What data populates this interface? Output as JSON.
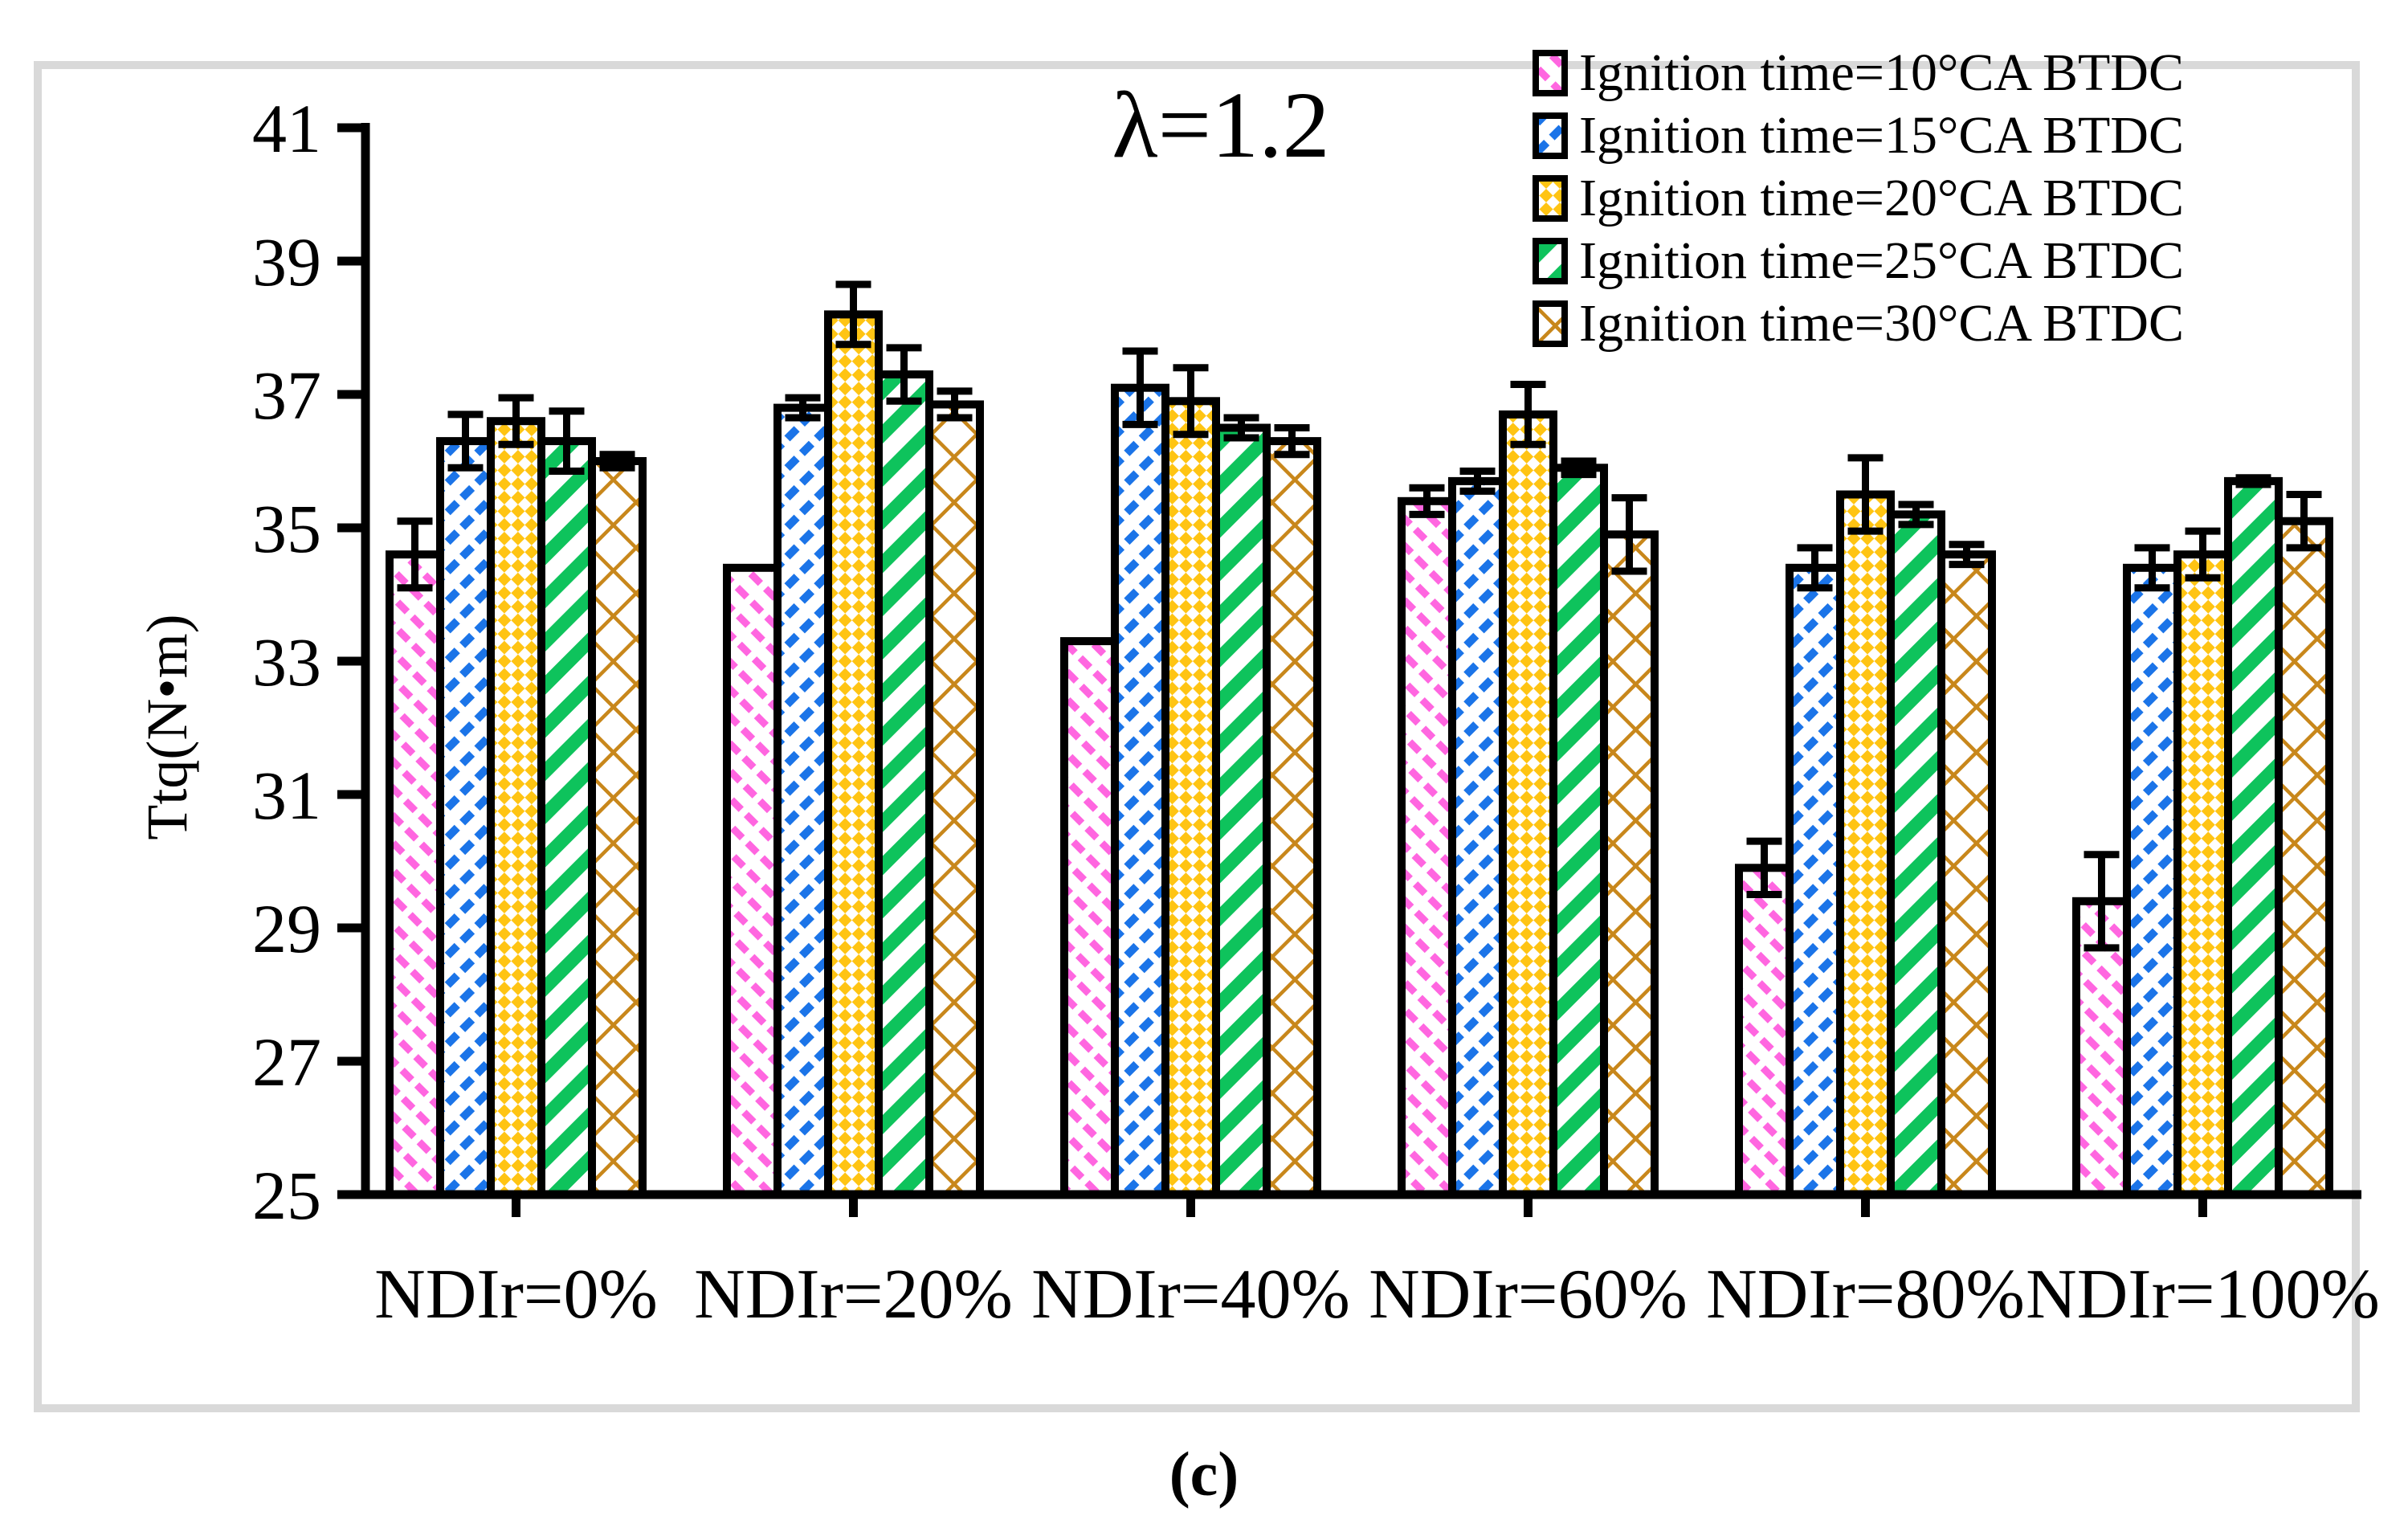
{
  "figure": {
    "title": "λ=1.2",
    "y_axis_label": "Ttq(N•m)",
    "caption": "(c)"
  },
  "chart_data": {
    "type": "bar",
    "title": "λ=1.2",
    "xlabel": "",
    "ylabel": "Ttq(N•m)",
    "ylim": [
      25,
      41
    ],
    "yticks": [
      25,
      27,
      29,
      31,
      33,
      35,
      37,
      39,
      41
    ],
    "grid": false,
    "legend_position": "top-right",
    "categories": [
      "NDIr=0%",
      "NDIr=20%",
      "NDIr=40%",
      "NDIr=60%",
      "NDIr=80%",
      "NDIr=100%"
    ],
    "series": [
      {
        "name": "Ignition time=10°CA BTDC",
        "color": "#FF66E0",
        "pattern": "diag-dash-down",
        "values": [
          34.6,
          34.4,
          33.3,
          35.4,
          29.9,
          29.4
        ],
        "errors": [
          0.5,
          0,
          0,
          0.2,
          0.4,
          0.7
        ]
      },
      {
        "name": "Ignition time=15°CA BTDC",
        "color": "#1B74E8",
        "pattern": "diag-dash-up",
        "values": [
          36.3,
          36.8,
          37.1,
          35.7,
          34.4,
          34.4
        ],
        "errors": [
          0.4,
          0.15,
          0.55,
          0.15,
          0.3,
          0.3
        ]
      },
      {
        "name": "Ignition time=20°CA BTDC",
        "color": "#FFC413",
        "pattern": "diamond-checker",
        "values": [
          36.6,
          38.2,
          36.9,
          36.7,
          35.5,
          34.6
        ],
        "errors": [
          0.35,
          0.45,
          0.5,
          0.45,
          0.55,
          0.35
        ]
      },
      {
        "name": "Ignition time=25°CA BTDC",
        "color": "#0EC35C",
        "pattern": "diag-stripe-up",
        "values": [
          36.3,
          37.3,
          36.5,
          35.9,
          35.2,
          35.7
        ],
        "errors": [
          0.45,
          0.4,
          0.15,
          0.1,
          0.15,
          0.05
        ]
      },
      {
        "name": "Ignition time=30°CA BTDC",
        "color": "#C8871B",
        "pattern": "diamond-lattice",
        "values": [
          36.0,
          36.85,
          36.3,
          34.9,
          34.6,
          35.1
        ],
        "errors": [
          0.1,
          0.2,
          0.2,
          0.55,
          0.15,
          0.4
        ]
      }
    ]
  }
}
